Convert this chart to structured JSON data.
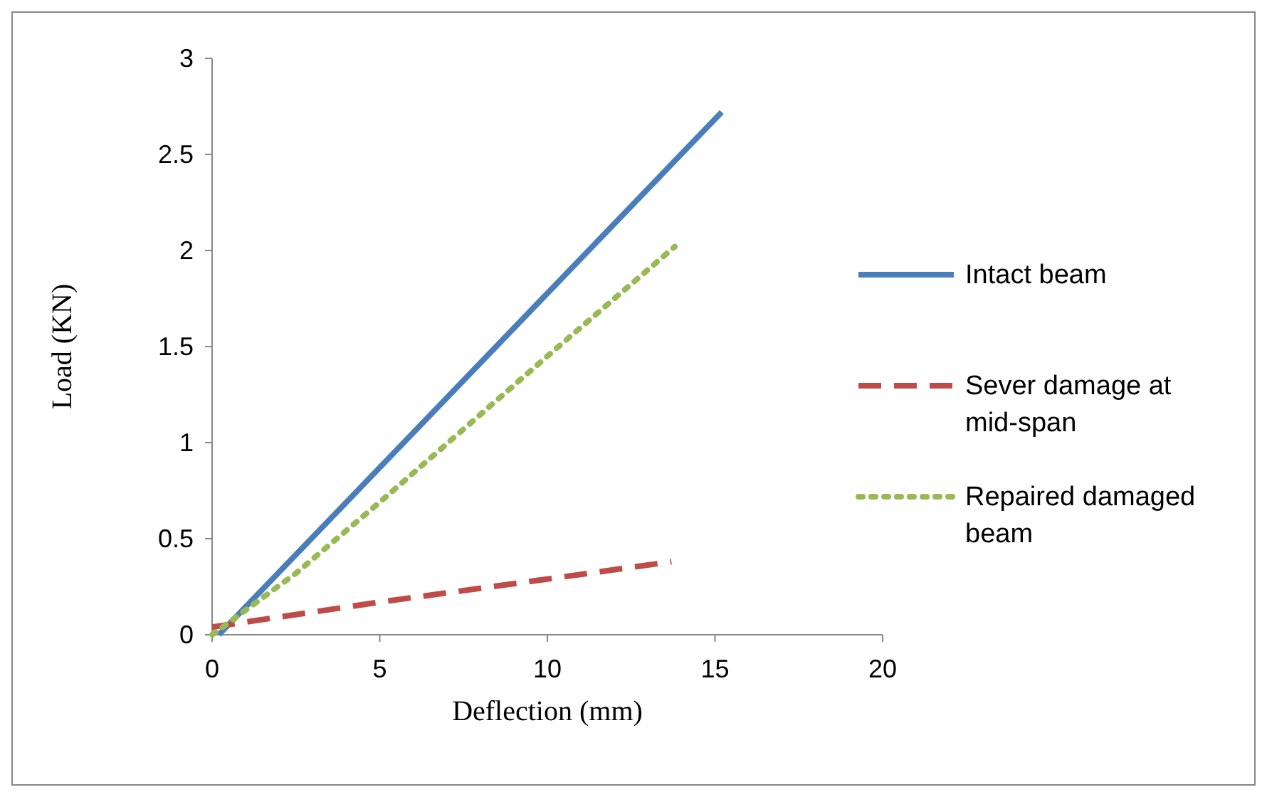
{
  "chart_data": {
    "type": "line",
    "xlabel": "Deflection (mm)",
    "ylabel": "Load (KN)",
    "xlim": [
      0,
      20
    ],
    "xticks": [
      0,
      5,
      10,
      15,
      20
    ],
    "ylim": [
      0,
      3
    ],
    "yticks": [
      0,
      0.5,
      1,
      1.5,
      2,
      2.5,
      3
    ],
    "legend": "right",
    "grid": false,
    "series": [
      {
        "name": "Intact beam",
        "color": "#4a7ebb",
        "line_style": "solid",
        "x": [
          0.2,
          15.2
        ],
        "values": [
          0,
          2.72
        ]
      },
      {
        "name": "Sever damage at mid-span",
        "color": "#be4b48",
        "line_style": "dashed",
        "x": [
          0,
          5,
          10,
          13.7
        ],
        "values": [
          0.04,
          0.17,
          0.29,
          0.38
        ]
      },
      {
        "name": "Repaired damaged beam",
        "color": "#98b954",
        "line_style": "dotted",
        "x": [
          0,
          2.5,
          5,
          7.5,
          10,
          12,
          13.8
        ],
        "values": [
          0,
          0.32,
          0.69,
          1.07,
          1.45,
          1.75,
          2.02
        ]
      }
    ]
  }
}
